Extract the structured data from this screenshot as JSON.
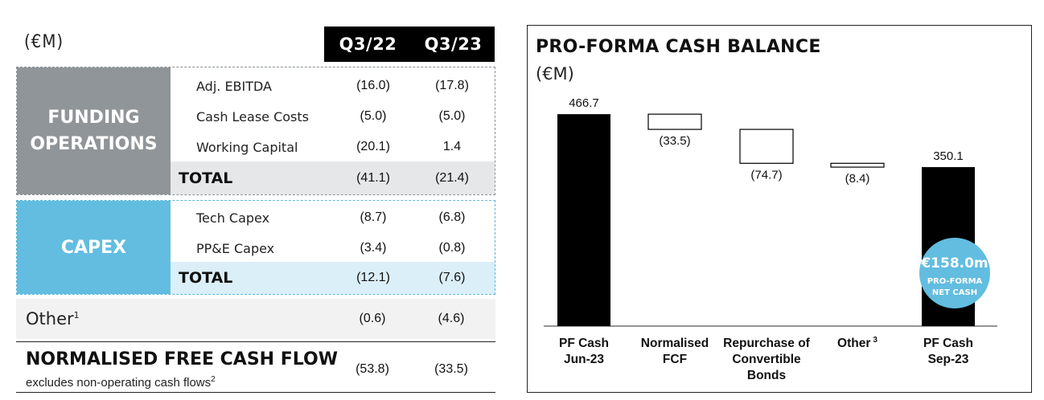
{
  "table": {
    "unit": "(€M)",
    "columns": [
      "Q3/22",
      "Q3/23"
    ],
    "funding": {
      "label_line1": "FUNDING",
      "label_line2": "OPERATIONS",
      "rows": [
        {
          "label": "Adj. EBITDA",
          "q322": "(16.0)",
          "q323": "(17.8)"
        },
        {
          "label": "Cash Lease Costs",
          "q322": "(5.0)",
          "q323": "(5.0)"
        },
        {
          "label": "Working Capital",
          "q322": "(20.1)",
          "q323": "1.4"
        }
      ],
      "total": {
        "label": "TOTAL",
        "q322": "(41.1)",
        "q323": "(21.4)"
      }
    },
    "capex": {
      "label": "CAPEX",
      "rows": [
        {
          "label": "Tech Capex",
          "q322": "(8.7)",
          "q323": "(6.8)"
        },
        {
          "label": "PP&E Capex",
          "q322": "(3.4)",
          "q323": "(0.8)"
        }
      ],
      "total": {
        "label": "TOTAL",
        "q322": "(12.1)",
        "q323": "(7.6)"
      }
    },
    "other": {
      "label": "Other",
      "footnote": "1",
      "q322": "(0.6)",
      "q323": "(4.6)"
    },
    "nfcf": {
      "title": "NORMALISED FREE CASH FLOW",
      "subtitle": "excludes non-operating cash flows",
      "footnote": "2",
      "q322": "(53.8)",
      "q323": "(33.5)"
    }
  },
  "chart_data": {
    "type": "bar",
    "subtype": "waterfall",
    "title": "PRO-FORMA CASH BALANCE",
    "unit": "(€M)",
    "categories": [
      [
        "PF Cash",
        "Jun-23"
      ],
      [
        "Normalised",
        "FCF"
      ],
      [
        "Repurchase of",
        "Convertible",
        "Bonds"
      ],
      [
        "Other"
      ],
      [
        "PF Cash",
        "Sep-23"
      ]
    ],
    "category_footnotes": [
      "",
      "",
      "",
      "3",
      ""
    ],
    "values": [
      466.7,
      -33.5,
      -74.7,
      -8.4,
      350.1
    ],
    "value_labels": [
      "466.7",
      "(33.5)",
      "(74.7)",
      "(8.4)",
      "350.1"
    ],
    "measures": [
      "absolute",
      "relative",
      "relative",
      "relative",
      "total"
    ],
    "ylim": [
      0,
      520
    ],
    "colors": {
      "total_bar": "#000000",
      "delta_fill": "#ffffff",
      "delta_stroke": "#000000",
      "badge": "#62bde0"
    },
    "badge": {
      "value": "€158.0m",
      "line1": "PRO-FORMA",
      "line2": "NET CASH"
    }
  }
}
